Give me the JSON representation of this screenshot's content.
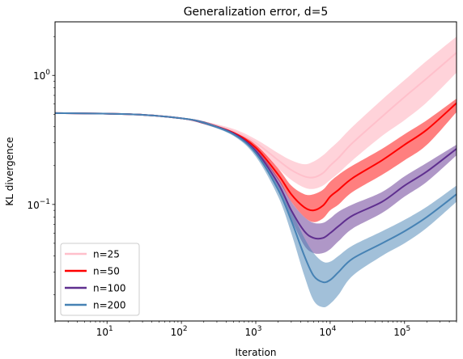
{
  "chart_data": {
    "type": "line",
    "title": "Generalization error, d=5",
    "xlabel": "Iteration",
    "ylabel": "KL divergence",
    "xscale": "log",
    "yscale": "log",
    "xlim": [
      2,
      500000
    ],
    "ylim": [
      0.0125,
      2.6
    ],
    "grid": false,
    "legend_position": "lower-left",
    "x_ticks": [
      {
        "value": 10,
        "base": "10",
        "exp": "1"
      },
      {
        "value": 100,
        "base": "10",
        "exp": "2"
      },
      {
        "value": 1000,
        "base": "10",
        "exp": "3"
      },
      {
        "value": 10000,
        "base": "10",
        "exp": "4"
      },
      {
        "value": 100000,
        "base": "10",
        "exp": "5"
      }
    ],
    "y_ticks": [
      {
        "value": 0.1,
        "base": "10",
        "exp": "−1"
      },
      {
        "value": 1,
        "base": "10",
        "exp": "0"
      }
    ],
    "x": [
      2,
      10,
      30,
      100,
      200,
      500,
      1000,
      2000,
      3000,
      4500,
      6000,
      8000,
      10000,
      13000,
      20000,
      50000,
      100000,
      200000,
      500000
    ],
    "series": [
      {
        "name": "n=25",
        "color": "#ffc0cb",
        "band_color": "#ffc0cb",
        "band_opacity": 0.7,
        "mean": [
          0.51,
          0.505,
          0.495,
          0.465,
          0.43,
          0.37,
          0.3,
          0.22,
          0.185,
          0.165,
          0.162,
          0.175,
          0.2,
          0.23,
          0.3,
          0.48,
          0.68,
          0.95,
          1.5
        ],
        "lower": [
          0.505,
          0.5,
          0.49,
          0.46,
          0.42,
          0.355,
          0.275,
          0.19,
          0.155,
          0.135,
          0.132,
          0.14,
          0.155,
          0.175,
          0.22,
          0.34,
          0.45,
          0.62,
          1.05
        ],
        "upper": [
          0.515,
          0.51,
          0.5,
          0.47,
          0.44,
          0.385,
          0.32,
          0.25,
          0.22,
          0.205,
          0.215,
          0.24,
          0.27,
          0.31,
          0.4,
          0.65,
          0.92,
          1.3,
          2.0
        ]
      },
      {
        "name": "n=50",
        "color": "#ff0000",
        "band_color": "#ff0000",
        "band_opacity": 0.5,
        "mean": [
          0.51,
          0.505,
          0.495,
          0.465,
          0.43,
          0.36,
          0.275,
          0.17,
          0.12,
          0.095,
          0.09,
          0.098,
          0.115,
          0.13,
          0.16,
          0.22,
          0.29,
          0.38,
          0.61
        ],
        "lower": [
          0.505,
          0.5,
          0.49,
          0.46,
          0.42,
          0.35,
          0.26,
          0.155,
          0.105,
          0.08,
          0.073,
          0.078,
          0.09,
          0.1,
          0.125,
          0.17,
          0.22,
          0.29,
          0.52
        ],
        "upper": [
          0.515,
          0.51,
          0.5,
          0.47,
          0.44,
          0.37,
          0.29,
          0.19,
          0.14,
          0.12,
          0.12,
          0.13,
          0.15,
          0.17,
          0.2,
          0.27,
          0.35,
          0.45,
          0.66
        ]
      },
      {
        "name": "n=100",
        "color": "#5f2f8f",
        "band_color": "#5f2f8f",
        "band_opacity": 0.5,
        "mean": [
          0.51,
          0.505,
          0.495,
          0.465,
          0.43,
          0.355,
          0.26,
          0.145,
          0.09,
          0.062,
          0.055,
          0.055,
          0.06,
          0.068,
          0.082,
          0.105,
          0.14,
          0.18,
          0.27
        ],
        "lower": [
          0.505,
          0.5,
          0.49,
          0.46,
          0.42,
          0.345,
          0.25,
          0.13,
          0.077,
          0.048,
          0.042,
          0.042,
          0.045,
          0.052,
          0.065,
          0.086,
          0.115,
          0.15,
          0.24
        ],
        "upper": [
          0.515,
          0.51,
          0.5,
          0.47,
          0.44,
          0.365,
          0.27,
          0.16,
          0.105,
          0.08,
          0.072,
          0.072,
          0.078,
          0.088,
          0.1,
          0.125,
          0.165,
          0.21,
          0.29
        ]
      },
      {
        "name": "n=200",
        "color": "#4682b4",
        "band_color": "#4682b4",
        "band_opacity": 0.5,
        "mean": [
          0.51,
          0.505,
          0.495,
          0.465,
          0.43,
          0.35,
          0.25,
          0.13,
          0.075,
          0.04,
          0.028,
          0.025,
          0.026,
          0.03,
          0.038,
          0.05,
          0.062,
          0.08,
          0.12
        ],
        "lower": [
          0.505,
          0.5,
          0.49,
          0.46,
          0.42,
          0.34,
          0.235,
          0.115,
          0.06,
          0.028,
          0.018,
          0.016,
          0.017,
          0.02,
          0.028,
          0.04,
          0.05,
          0.066,
          0.105
        ],
        "upper": [
          0.515,
          0.51,
          0.5,
          0.47,
          0.44,
          0.36,
          0.265,
          0.145,
          0.09,
          0.055,
          0.042,
          0.036,
          0.036,
          0.04,
          0.048,
          0.062,
          0.076,
          0.096,
          0.14
        ]
      }
    ]
  }
}
